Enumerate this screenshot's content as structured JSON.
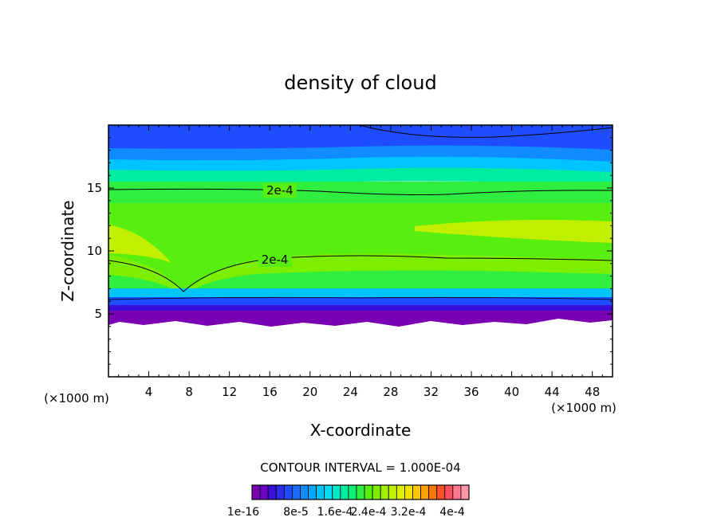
{
  "chart_data": {
    "type": "heatmap",
    "title": "density of cloud",
    "xlabel": "X-coordinate",
    "ylabel": "Z-coordinate",
    "x_unit_left": "(×1000 m)",
    "x_unit_right": "(×1000 m)",
    "xlim": [
      0,
      50
    ],
    "ylim": [
      0,
      20
    ],
    "x_ticks": [
      4,
      8,
      12,
      16,
      20,
      24,
      28,
      32,
      36,
      40,
      44,
      48
    ],
    "y_ticks": [
      5,
      10,
      15
    ],
    "contour_labels": [
      {
        "text": "2e-4",
        "x": 17.0,
        "y": 14.8
      },
      {
        "text": "2e-4",
        "x": 16.5,
        "y": 9.3
      }
    ],
    "contour_interval_text": "CONTOUR INTERVAL = 1.000E-04",
    "colorbar": {
      "labels": [
        "1e-16",
        "8e-5",
        "1.6e-4",
        "2.4e-4",
        "3.2e-4",
        "4e-4"
      ],
      "label_text": [
        "1e-16",
        "8e-5",
        "1.6e-4",
        "2.4e-4",
        "3.2e-4",
        "4e-4"
      ],
      "colors": [
        "#7a00b4",
        "#6a00c8",
        "#3c0fd8",
        "#2e2cf0",
        "#1e4cff",
        "#1a6cff",
        "#108cff",
        "#00a8ff",
        "#00c4ff",
        "#00dcf0",
        "#00e8c8",
        "#00eca0",
        "#10ee78",
        "#30ee40",
        "#58ee10",
        "#7cee00",
        "#a0ee00",
        "#c0f000",
        "#dcf000",
        "#f0e400",
        "#ffc800",
        "#ffa000",
        "#ff7800",
        "#ff5028",
        "#ff5060",
        "#ff7890",
        "#ff96a8"
      ]
    }
  }
}
